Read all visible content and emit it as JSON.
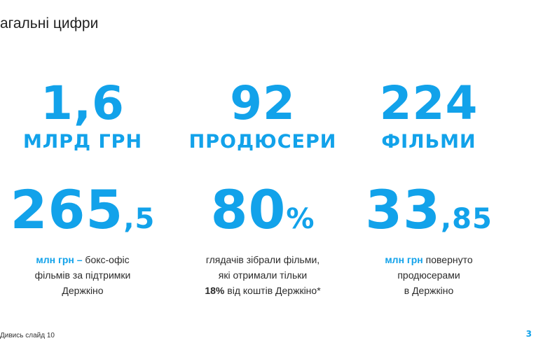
{
  "header": {
    "title": "агальні цифри"
  },
  "stats_top": [
    {
      "number": "1,6",
      "label": "МЛРД ГРН"
    },
    {
      "number": "92",
      "label": "ПРОДЮСЕРИ"
    },
    {
      "number": "224",
      "label": "ФІЛЬМИ"
    }
  ],
  "stats_bottom": [
    {
      "number_main": "265",
      "number_small": ",5",
      "caption": {
        "accent": "млн грн –",
        "line1": "бокс-офіс",
        "line2": "фільмів за підтримки",
        "line3": "Держкіно"
      }
    },
    {
      "number_main": "80",
      "number_small": "%",
      "caption": {
        "line1": "глядачів зібрали фільми,",
        "line2": "які отримали тільки",
        "bold": "18%",
        "line3": "від коштів Держкіно*"
      }
    },
    {
      "number_main": "33",
      "number_small": ",85",
      "caption": {
        "accent": "млн грн",
        "line1": "повернуто",
        "line2": "продюсерами",
        "line3": "в Держкіно"
      }
    }
  ],
  "footer": {
    "note": "Дивись слайд 10",
    "page": "3"
  }
}
